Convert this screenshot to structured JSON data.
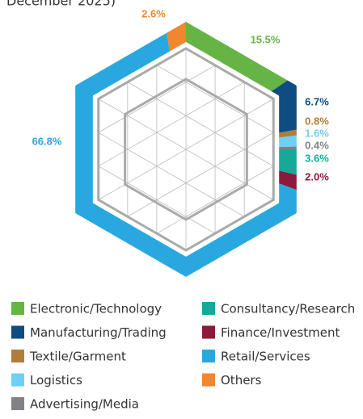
{
  "chart_data": {
    "type": "pie",
    "title": "December 2025)",
    "categories": [
      "Electronic/Technology",
      "Manufacturing/Trading",
      "Textile/Garment",
      "Logistics",
      "Advertising/Media",
      "Consultancy/Research",
      "Finance/Investment",
      "Retail/Services",
      "Others"
    ],
    "values": [
      15.5,
      6.7,
      0.8,
      1.6,
      0.4,
      3.6,
      2.0,
      66.8,
      2.6
    ],
    "value_labels": [
      "15.5%",
      "6.7%",
      "0.8%",
      "1.6%",
      "0.4%",
      "3.6%",
      "2.0%",
      "66.8%",
      "2.6%"
    ],
    "colors": [
      "#66b446",
      "#0f4c81",
      "#b07d3a",
      "#6dd0f5",
      "#808285",
      "#16a99a",
      "#8b1a3b",
      "#29a8e0",
      "#f0862f"
    ]
  }
}
